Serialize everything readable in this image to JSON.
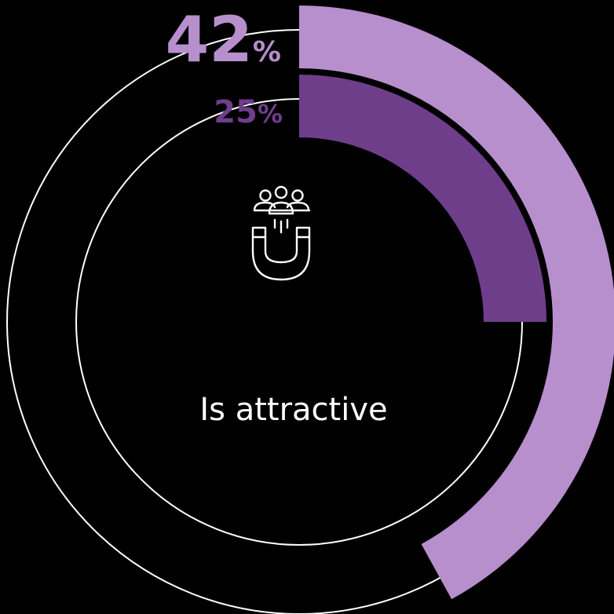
{
  "chart_data": {
    "type": "radial-bar",
    "label": "Is attractive",
    "icon": "people-magnet-icon",
    "series": [
      {
        "display": "42%",
        "number": "42",
        "unit": "%",
        "value": 42,
        "color": "#b78fcd"
      },
      {
        "display": "25%",
        "number": "25",
        "unit": "%",
        "value": 25,
        "color": "#6f3e8b"
      }
    ],
    "max": 100,
    "track_color": "#ffffff",
    "background": "#000000"
  }
}
